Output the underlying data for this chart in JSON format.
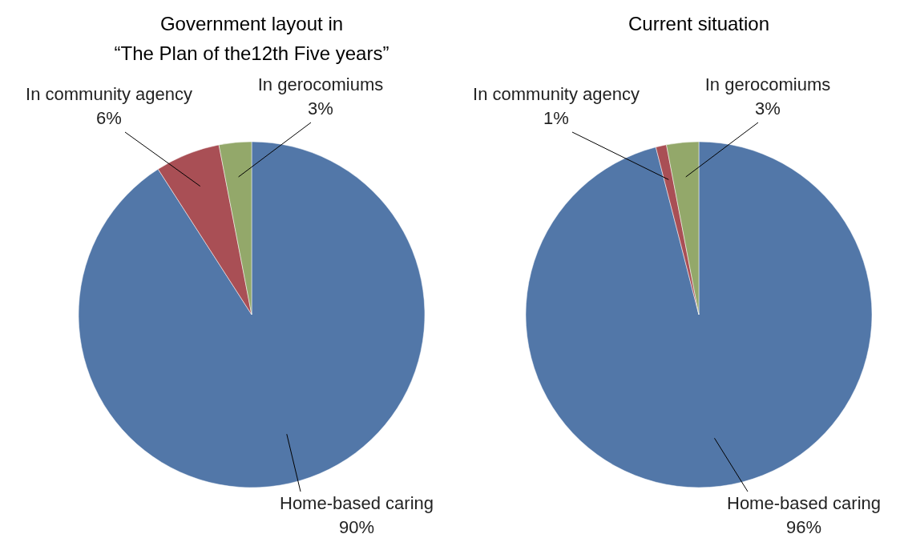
{
  "chart_data": [
    {
      "type": "pie",
      "title": "Government layout in\n“The Plan of the12th Five years”",
      "categories": [
        "Home-based caring",
        "In community agency",
        "In gerocomiums"
      ],
      "values": [
        90,
        6,
        3
      ],
      "colors": [
        "#5277a8",
        "#a94f55",
        "#93a86a"
      ],
      "value_labels": [
        "90%",
        "6%",
        "3%"
      ]
    },
    {
      "type": "pie",
      "title": "Current situation",
      "categories": [
        "Home-based caring",
        "In community agency",
        "In gerocomiums"
      ],
      "values": [
        96,
        1,
        3
      ],
      "colors": [
        "#5277a8",
        "#a94f55",
        "#93a86a"
      ],
      "value_labels": [
        "96%",
        "1%",
        "3%"
      ]
    }
  ]
}
